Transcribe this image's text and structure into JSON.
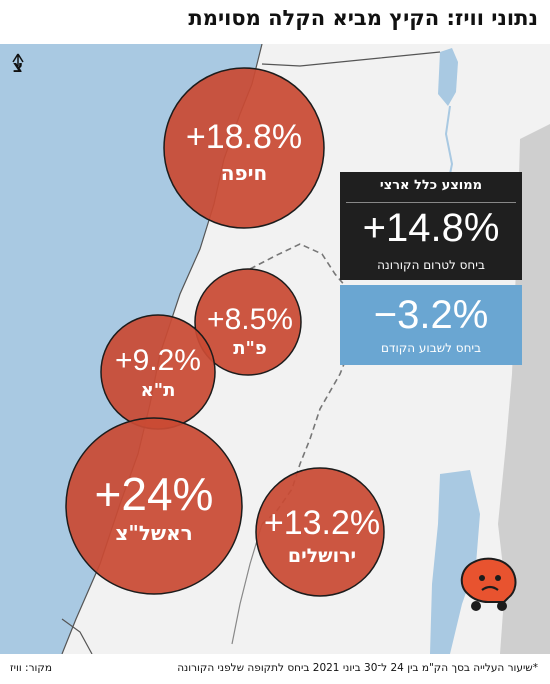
{
  "title": "נתוני וויז: הקיץ מביא הקלה מסוימת",
  "north_label": "צ",
  "national_average": {
    "heading": "ממוצע כלל ארצי",
    "pre_corona_value": "+14.8%",
    "pre_corona_label": "ביחס לטרום הקורונה",
    "prev_week_value": "−3.2%",
    "prev_week_label": "ביחס לשבוע הקודם"
  },
  "cities": [
    {
      "name": "חיפה",
      "value": "+18.8%"
    },
    {
      "name": "פ\"ת",
      "value": "+8.5%"
    },
    {
      "name": "ת\"א",
      "value": "+9.2%"
    },
    {
      "name": "ראשל\"צ",
      "value": "+24%"
    },
    {
      "name": "ירושלים",
      "value": "+13.2%"
    }
  ],
  "footnote": "*שיעור העלייה בסך הק\"מ בין 24 ל־30 ביוני 2021 ביחס לתקופה שלפני הקורונה",
  "source": "מקור: וויז",
  "colors": {
    "sea": "#a9c9e2",
    "land": "#f2f2f2",
    "circle": "#c94a34",
    "dark_box": "#1f1f1f",
    "blue_box": "#6aa6d2"
  }
}
